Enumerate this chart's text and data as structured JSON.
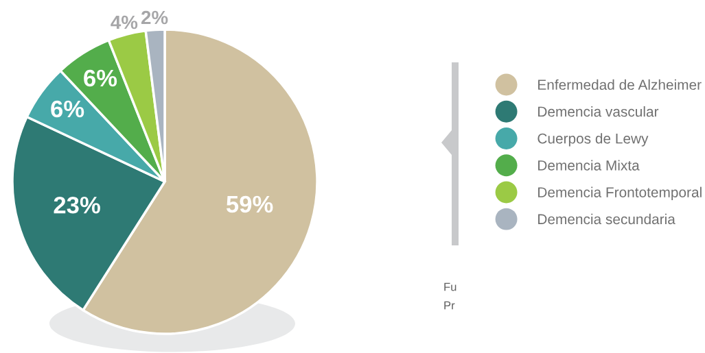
{
  "chart_data": {
    "type": "pie",
    "categories": [
      "Enfermedad de Alzheimer",
      "Demencia vascular",
      "Cuerpos de Lewy",
      "Demencia Mixta",
      "Demencia Frontotemporal",
      "Demencia secundaria"
    ],
    "values": [
      59,
      23,
      6,
      6,
      4,
      2
    ],
    "colors": [
      "#d0c1a0",
      "#2e7a74",
      "#47a9a9",
      "#53ad4b",
      "#9bca45",
      "#a9b4c0"
    ],
    "value_labels": [
      "59%",
      "23%",
      "6%",
      "6%",
      "4%",
      "2%"
    ],
    "legend": "right",
    "annotations": [
      "Fu",
      "Pr"
    ]
  }
}
